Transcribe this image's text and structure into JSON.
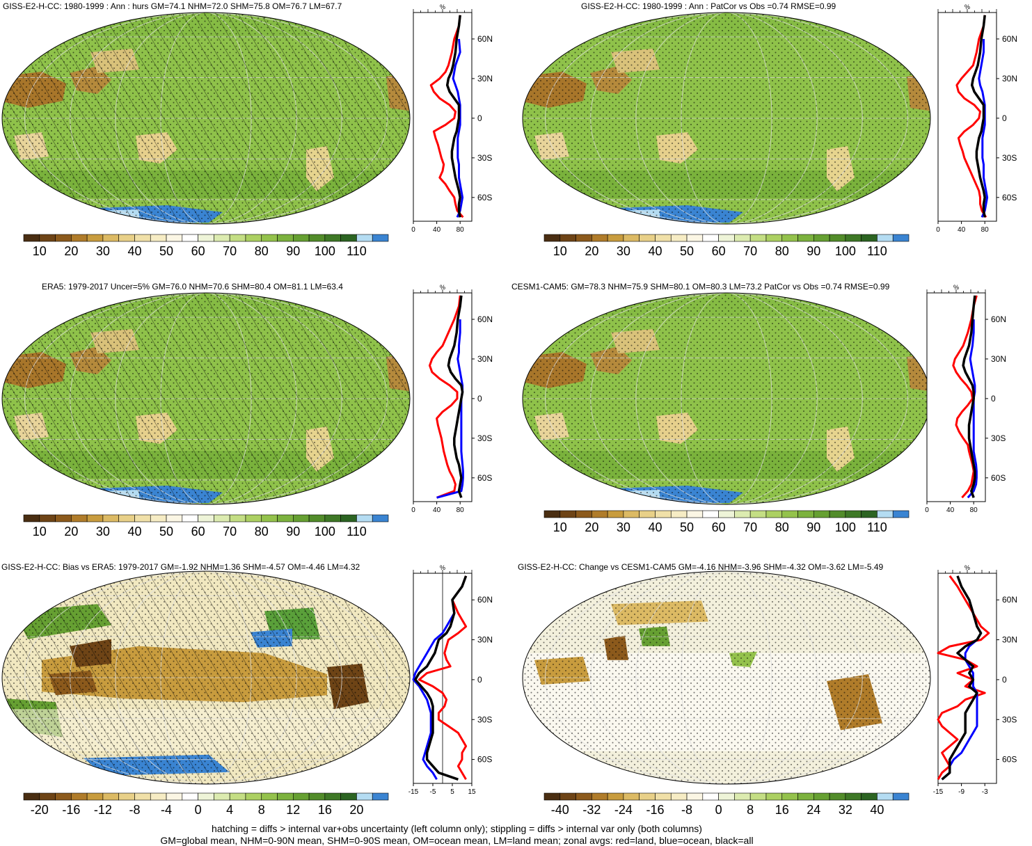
{
  "panels": [
    {
      "id": "p1",
      "title": "GISS-E2-H-CC: 1980-1999 : Ann : hurs GM=74.1 NHM=72.0 SHM=75.8 OM=76.7 LM=67.7",
      "kind": "absolute",
      "hatching": true,
      "stippling": true,
      "zonal": {
        "unit": "%",
        "xlim": [
          0,
          100
        ],
        "xticks": [
          "0",
          "40",
          "80"
        ],
        "ylabels": [
          "60N",
          "30N",
          "0",
          "30S",
          "60S"
        ],
        "lat": [
          78,
          70,
          60,
          50,
          40,
          35,
          30,
          25,
          20,
          15,
          10,
          5,
          0,
          -5,
          -10,
          -15,
          -20,
          -25,
          -30,
          -35,
          -40,
          -45,
          -50,
          -55,
          -60,
          -65,
          -70,
          -75
        ],
        "land": [
          80,
          78,
          70,
          66,
          60,
          55,
          45,
          30,
          35,
          45,
          62,
          72,
          70,
          55,
          35,
          38,
          42,
          45,
          48,
          52,
          50,
          45,
          55,
          62,
          70,
          72,
          75,
          85
        ],
        "ocean": [
          null,
          null,
          78,
          80,
          72,
          70,
          68,
          72,
          76,
          78,
          80,
          80,
          80,
          80,
          78,
          76,
          76,
          76,
          76,
          78,
          78,
          78,
          80,
          82,
          84,
          82,
          80,
          75
        ],
        "all": [
          80,
          78,
          74,
          72,
          68,
          65,
          60,
          58,
          62,
          70,
          78,
          78,
          78,
          76,
          74,
          70,
          68,
          66,
          66,
          68,
          70,
          72,
          75,
          78,
          80,
          78,
          78,
          80
        ]
      }
    },
    {
      "id": "p2",
      "title": "GISS-E2-H-CC: 1980-1999 : Ann : PatCor vs Obs =0.74 RMSE=0.99",
      "kind": "absolute",
      "hatching": false,
      "stippling": true,
      "zonal": {
        "unit": "%",
        "xlim": [
          0,
          100
        ],
        "xticks": [
          "0",
          "40",
          "80"
        ],
        "ylabels": [
          "60N",
          "30N",
          "0",
          "30S",
          "60S"
        ],
        "lat": [
          78,
          70,
          60,
          50,
          40,
          35,
          30,
          25,
          20,
          15,
          10,
          5,
          0,
          -5,
          -10,
          -15,
          -20,
          -25,
          -30,
          -35,
          -40,
          -45,
          -50,
          -55,
          -60,
          -65,
          -70,
          -75
        ],
        "land": [
          80,
          78,
          70,
          66,
          60,
          50,
          40,
          32,
          35,
          45,
          62,
          72,
          70,
          60,
          45,
          35,
          38,
          42,
          45,
          50,
          55,
          60,
          65,
          70,
          72,
          72,
          75,
          82
        ],
        "ocean": [
          null,
          null,
          78,
          78,
          74,
          72,
          70,
          72,
          76,
          78,
          80,
          80,
          80,
          80,
          78,
          76,
          76,
          76,
          76,
          78,
          78,
          78,
          80,
          82,
          84,
          82,
          80,
          75
        ],
        "all": [
          80,
          78,
          74,
          72,
          68,
          64,
          60,
          58,
          62,
          70,
          78,
          78,
          78,
          76,
          74,
          70,
          68,
          66,
          66,
          68,
          70,
          72,
          75,
          78,
          80,
          78,
          78,
          80
        ]
      }
    },
    {
      "id": "p3",
      "title": "ERA5: 1979-2017 Uncer=5% GM=76.0 NHM=70.6 SHM=80.4 OM=81.1 LM=63.4",
      "kind": "absolute",
      "hatching": true,
      "stippling": true,
      "zonal": {
        "unit": "%",
        "xlim": [
          0,
          100
        ],
        "xticks": [
          "0",
          "40",
          "80"
        ],
        "ylabels": [
          "60N",
          "30N",
          "0",
          "30S",
          "60S"
        ],
        "lat": [
          78,
          70,
          60,
          50,
          40,
          35,
          30,
          25,
          20,
          15,
          10,
          5,
          0,
          -5,
          -10,
          -15,
          -20,
          -25,
          -30,
          -35,
          -40,
          -45,
          -50,
          -55,
          -60,
          -65,
          -70,
          -75
        ],
        "land": [
          80,
          78,
          70,
          60,
          50,
          40,
          32,
          28,
          32,
          45,
          62,
          75,
          75,
          65,
          50,
          40,
          42,
          45,
          48,
          50,
          52,
          55,
          58,
          62,
          68,
          72,
          70,
          40
        ],
        "ocean": [
          null,
          null,
          80,
          80,
          78,
          78,
          76,
          78,
          80,
          82,
          84,
          84,
          82,
          82,
          82,
          82,
          82,
          82,
          82,
          82,
          82,
          83,
          84,
          85,
          85,
          84,
          82,
          40
        ],
        "all": [
          82,
          80,
          76,
          74,
          70,
          66,
          62,
          60,
          64,
          72,
          82,
          84,
          82,
          80,
          78,
          76,
          74,
          72,
          70,
          70,
          72,
          74,
          78,
          80,
          82,
          80,
          78,
          82
        ]
      }
    },
    {
      "id": "p4",
      "title": "CESM1-CAM5: GM=78.3 NHM=75.9 SHM=80.1 OM=80.3 LM=73.2 PatCor vs Obs =0.74 RMSE=0.99",
      "kind": "absolute",
      "hatching": false,
      "stippling": true,
      "zonal": {
        "unit": "%",
        "xlim": [
          0,
          100
        ],
        "xticks": [
          "0",
          "40",
          "80"
        ],
        "ylabels": [
          "60N",
          "30N",
          "0",
          "30S",
          "60S"
        ],
        "lat": [
          78,
          70,
          60,
          50,
          40,
          35,
          30,
          25,
          20,
          15,
          10,
          5,
          0,
          -5,
          -10,
          -15,
          -20,
          -25,
          -30,
          -35,
          -40,
          -45,
          -50,
          -55,
          -60,
          -65,
          -70,
          -75
        ],
        "land": [
          85,
          80,
          76,
          70,
          62,
          55,
          48,
          45,
          50,
          58,
          68,
          76,
          78,
          70,
          60,
          52,
          50,
          55,
          62,
          70,
          72,
          75,
          78,
          80,
          78,
          76,
          70,
          60
        ],
        "ocean": [
          null,
          null,
          80,
          80,
          78,
          76,
          74,
          76,
          78,
          80,
          82,
          82,
          80,
          80,
          80,
          80,
          80,
          80,
          80,
          80,
          80,
          82,
          84,
          85,
          85,
          84,
          80,
          70
        ],
        "all": [
          82,
          80,
          78,
          76,
          72,
          68,
          64,
          62,
          66,
          72,
          78,
          80,
          80,
          78,
          76,
          74,
          72,
          72,
          72,
          74,
          76,
          78,
          80,
          82,
          82,
          80,
          76,
          80
        ]
      }
    },
    {
      "id": "p5",
      "title": "GISS-E2-H-CC: Bias vs ERA5: 1979-2017 GM=-1.92 NHM=1.36 SHM=-4.57 OM=-4.46 LM=4.32",
      "kind": "difference",
      "hatching": true,
      "stippling": true,
      "zonal": {
        "unit": "%",
        "xlim": [
          -15,
          15
        ],
        "xticks": [
          "-15",
          "-5",
          "5",
          "15"
        ],
        "ylabels": [
          "60N",
          "30N",
          "0",
          "30S",
          "60S"
        ],
        "lat": [
          78,
          70,
          60,
          50,
          40,
          35,
          30,
          25,
          20,
          15,
          10,
          5,
          0,
          -5,
          -10,
          -15,
          -20,
          -25,
          -30,
          -35,
          -40,
          -45,
          -50,
          -55,
          -60,
          -65,
          -70,
          -75
        ],
        "land": [
          12,
          10,
          5,
          8,
          12,
          8,
          3,
          2,
          1,
          2,
          4,
          -8,
          -12,
          -5,
          0,
          2,
          1,
          -2,
          -2,
          3,
          8,
          10,
          12,
          10,
          10,
          8,
          10,
          12
        ],
        "ocean": [
          null,
          null,
          5,
          6,
          2,
          0,
          -4,
          -6,
          -8,
          -10,
          -12,
          -14,
          -15,
          -12,
          -10,
          -8,
          -7,
          -6,
          -6,
          -6,
          -6,
          -7,
          -8,
          -9,
          -10,
          -8,
          -5,
          -3
        ],
        "all": [
          12,
          10,
          5,
          6,
          4,
          2,
          -2,
          -3,
          -4,
          -6,
          -8,
          -12,
          -14,
          -11,
          -8,
          -6,
          -5,
          -5,
          -5,
          -5,
          -5,
          -6,
          -7,
          -8,
          -8,
          -5,
          -2,
          8
        ]
      }
    },
    {
      "id": "p6",
      "title": "GISS-E2-H-CC: Change vs CESM1-CAM5 GM=-4.16 NHM=-3.96 SHM=-4.32 OM=-3.62 LM=-5.49",
      "kind": "difference",
      "hatching": false,
      "stippling": true,
      "zonal": {
        "unit": "%",
        "xlim": [
          -15,
          0
        ],
        "xticks": [
          "-15",
          "-9",
          "-3"
        ],
        "ylabels": [
          "60N",
          "30N",
          "0",
          "30S",
          "60S"
        ],
        "lat": [
          78,
          70,
          60,
          50,
          40,
          35,
          30,
          25,
          20,
          15,
          10,
          5,
          0,
          -5,
          -10,
          -15,
          -20,
          -25,
          -30,
          -35,
          -40,
          -45,
          -50,
          -55,
          -60,
          -65,
          -70,
          -75
        ],
        "land": [
          -12,
          -10,
          -8,
          -6,
          -4,
          -2,
          -4,
          -12,
          -15,
          -8,
          -5,
          -10,
          -6,
          -8,
          -3,
          -8,
          -10,
          -14,
          -15,
          -14,
          -12,
          -10,
          -12,
          -14,
          -13,
          -12,
          -14,
          -15
        ],
        "ocean": [
          null,
          null,
          -7,
          -6,
          -5,
          -4,
          -5,
          -7,
          -8,
          -8,
          -7,
          -6,
          -6,
          -6,
          -5,
          -5,
          -5,
          -5,
          -5,
          -5,
          -6,
          -7,
          -8,
          -9,
          -11,
          -12,
          -12,
          -14
        ],
        "all": [
          -10,
          -9,
          -7,
          -6,
          -5,
          -4,
          -5,
          -8,
          -10,
          -8,
          -6,
          -7,
          -6,
          -7,
          -5,
          -6,
          -7,
          -8,
          -8,
          -8,
          -8,
          -9,
          -10,
          -11,
          -12,
          -12,
          -12,
          -14
        ]
      }
    }
  ],
  "colorbars": {
    "absolute": {
      "labels": [
        "10",
        "20",
        "30",
        "40",
        "50",
        "60",
        "70",
        "80",
        "90",
        "100",
        "110"
      ],
      "colors": [
        "#4a2e12",
        "#6e4416",
        "#8c5a1c",
        "#b07c2a",
        "#c89c3e",
        "#dcba64",
        "#e8d088",
        "#f0e0a8",
        "#f6ecc4",
        "#fbf6e4",
        "#ffffff",
        "#eef4d8",
        "#dcebb0",
        "#c4de84",
        "#acd062",
        "#94c24c",
        "#7cb23e",
        "#66a032",
        "#528c2a",
        "#3e7826",
        "#2c6422",
        "#b4dcf2",
        "#3a84d2"
      ]
    },
    "difference": {
      "labels_bias": [
        "-20",
        "-16",
        "-12",
        "-8",
        "-4",
        "0",
        "4",
        "8",
        "12",
        "16",
        "20"
      ],
      "labels_change": [
        "-40",
        "-32",
        "-24",
        "-16",
        "-8",
        "0",
        "8",
        "16",
        "24",
        "32",
        "40"
      ],
      "colors": [
        "#4a2e12",
        "#6e4416",
        "#8c5a1c",
        "#b07c2a",
        "#c89c3e",
        "#dcba64",
        "#e8d088",
        "#f0e0a8",
        "#f6ecc4",
        "#fbf6e4",
        "#ffffff",
        "#eef4d8",
        "#dcebb0",
        "#c4de84",
        "#acd062",
        "#94c24c",
        "#7cb23e",
        "#66a032",
        "#528c2a",
        "#3e7826",
        "#2c6422",
        "#b4dcf2",
        "#3a84d2"
      ]
    }
  },
  "footer": {
    "line1": "hatching = diffs > internal var+obs uncertainty (left column only); stippling = diffs > internal var only (both columns)",
    "line2": "GM=global mean, NHM=0-90N mean, SHM=0-90S mean, OM=ocean mean, LM=land mean; zonal avgs: red=land, blue=ocean, black=all"
  },
  "legend_colors": {
    "land": "#ff0000",
    "ocean": "#0000ff",
    "all": "#000000"
  }
}
